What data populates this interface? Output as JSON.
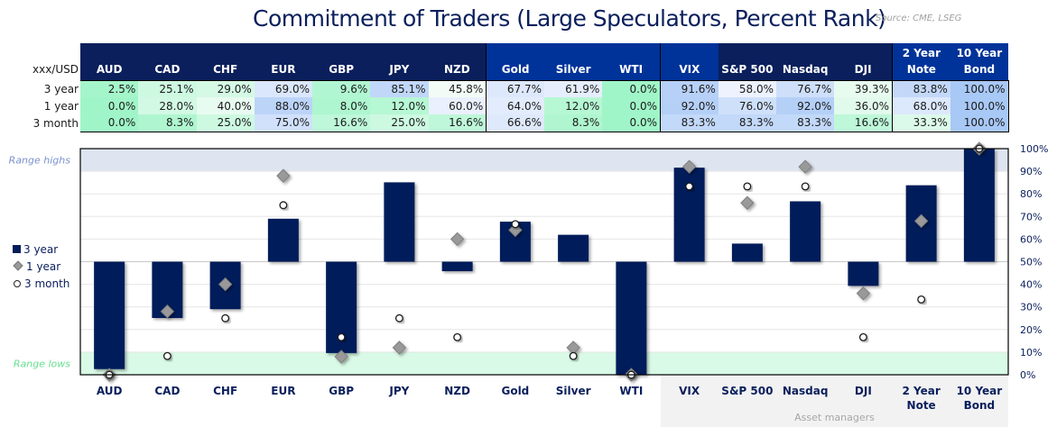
{
  "title": "Commitment of Traders (Large Speculators, Percent Rank)",
  "source": "Source: CME, LSEG",
  "table": {
    "corner_label": "xxx/USD",
    "row_labels": [
      "3 year",
      "1 year",
      "3 month"
    ],
    "header_colors": [
      "#0a1f5c",
      "#0a1f5c",
      "#0a1f5c",
      "#0a1f5c",
      "#0a1f5c",
      "#0a1f5c",
      "#0a1f5c",
      "#003399",
      "#003399",
      "#003399",
      "#003399",
      "#0a1f5c",
      "#0a1f5c",
      "#0a1f5c",
      "#003399",
      "#003399"
    ]
  },
  "chart_data": {
    "type": "bar",
    "categories": [
      "AUD",
      "CAD",
      "CHF",
      "EUR",
      "GBP",
      "JPY",
      "NZD",
      "Gold",
      "Silver",
      "WTI",
      "VIX",
      "S&P 500",
      "Nasdaq",
      "DJI",
      "2 Year Note",
      "10 Year Bond"
    ],
    "baseline": 50,
    "series": [
      {
        "name": "3 year",
        "marker": "bar",
        "color": "#041e5a",
        "values": [
          2.5,
          25.1,
          29.0,
          69.0,
          9.6,
          85.1,
          45.8,
          67.7,
          61.9,
          0.0,
          91.6,
          58.0,
          76.7,
          39.3,
          83.8,
          100.0
        ]
      },
      {
        "name": "1 year",
        "marker": "diamond",
        "color": "#999999",
        "values": [
          0.0,
          28.0,
          40.0,
          88.0,
          8.0,
          12.0,
          60.0,
          64.0,
          12.0,
          0.0,
          92.0,
          76.0,
          92.0,
          36.0,
          68.0,
          100.0
        ]
      },
      {
        "name": "3 month",
        "marker": "circle",
        "color": "#ffffff",
        "values": [
          0.0,
          8.3,
          25.0,
          75.0,
          16.6,
          25.0,
          16.6,
          66.6,
          8.3,
          0.0,
          83.3,
          83.3,
          83.3,
          16.6,
          33.3,
          100.0
        ]
      }
    ],
    "ylim": [
      0,
      100
    ],
    "yticks": [
      "0%",
      "10%",
      "20%",
      "30%",
      "40%",
      "50%",
      "60%",
      "70%",
      "80%",
      "90%",
      "100%"
    ],
    "grid": true,
    "legend_position": "left",
    "bands": [
      {
        "label": "Range highs",
        "from": 90,
        "to": 100,
        "color": "#dfe5f0",
        "label_color": "#7a93cc"
      },
      {
        "label": "Range lows",
        "from": 0,
        "to": 10,
        "color": "#d9fae6",
        "label_color": "#66e08f"
      }
    ],
    "group_label": "Asset managers"
  }
}
